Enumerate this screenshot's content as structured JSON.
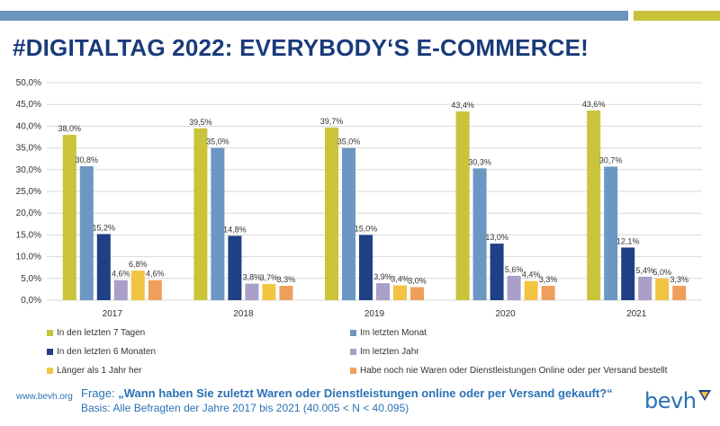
{
  "header": {
    "title": "#DIGITALTAG 2022: EVERYBODY‘S E-COMMERCE!"
  },
  "colors": {
    "blue_bar": "#6a93bd",
    "yellow_bar": "#c7c13a",
    "title": "#1a3b7a",
    "footer": "#2a72b5"
  },
  "chart_data": {
    "type": "bar",
    "categories": [
      "2017",
      "2018",
      "2019",
      "2020",
      "2021"
    ],
    "ylim": [
      0,
      50
    ],
    "yticks": [
      "0,0%",
      "5,0%",
      "10,0%",
      "15,0%",
      "20,0%",
      "25,0%",
      "30,0%",
      "35,0%",
      "40,0%",
      "45,0%",
      "50,0%"
    ],
    "grid": true,
    "legend_position": "bottom",
    "series": [
      {
        "name": "In den letzten 7 Tagen",
        "color": "#c9c43a",
        "values": [
          38.0,
          39.5,
          39.7,
          43.4,
          43.6
        ],
        "labels": [
          "38,0%",
          "39,5%",
          "39,7%",
          "43,4%",
          "43,6%"
        ]
      },
      {
        "name": "Im letzten Monat",
        "color": "#6c97c2",
        "values": [
          30.8,
          35.0,
          35.0,
          30.3,
          30.7
        ],
        "labels": [
          "30,8%",
          "35,0%",
          "35,0%",
          "30,3%",
          "30,7%"
        ]
      },
      {
        "name": "In den letzten 6 Monaten",
        "color": "#1f3f86",
        "values": [
          15.2,
          14.8,
          15.0,
          13.0,
          12.1
        ],
        "labels": [
          "15,2%",
          "14,8%",
          "15,0%",
          "13,0%",
          "12,1%"
        ]
      },
      {
        "name": "Im letzten Jahr",
        "color": "#a99fc8",
        "values": [
          4.6,
          3.8,
          3.9,
          5.6,
          5.4
        ],
        "labels": [
          "4,6%",
          "3,8%",
          "3,9%",
          "5,6%",
          "5,4%"
        ]
      },
      {
        "name": "Länger als 1 Jahr her",
        "color": "#f2c443",
        "values": [
          6.8,
          3.7,
          3.4,
          4.4,
          5.0
        ],
        "labels": [
          "6,8%",
          "3,7%",
          "3,4%",
          "4,4%",
          "5,0%"
        ]
      },
      {
        "name": "Habe noch nie Waren oder Dienstleistungen Online oder per Versand bestellt",
        "color": "#ef9f5c",
        "values": [
          4.6,
          3.3,
          3.0,
          3.3,
          3.3
        ],
        "labels": [
          "4,6%",
          "3,3%",
          "3,0%",
          "3,3%",
          "3,3%"
        ]
      }
    ]
  },
  "footer": {
    "url": "www.bevh.org",
    "question_prefix": "Frage: ",
    "question": "„Wann haben Sie zuletzt Waren oder Dienstleistungen online oder per Versand gekauft?“",
    "basis": "Basis: Alle Befragten der Jahre 2017 bis 2021 (40.005 < N < 40.095)",
    "logo": "bevh",
    "logo_icon": "bevh-triangle-logo-icon"
  }
}
